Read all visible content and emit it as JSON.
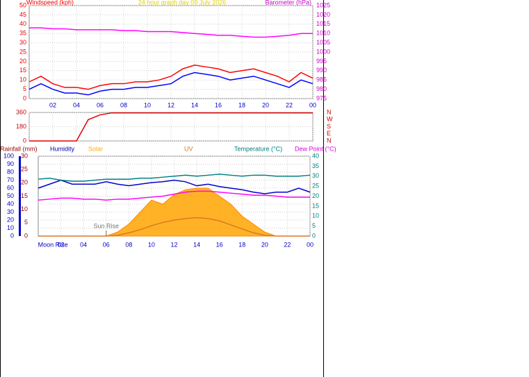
{
  "chart_data": [
    {
      "type": "line",
      "title": "24 hour graph day  09 July 2026",
      "ylabel": "Windspeed (kph)",
      "y2label": "Barometer (hPa)",
      "xlim": [
        0,
        24
      ],
      "x": [
        0,
        1,
        2,
        3,
        4,
        5,
        6,
        7,
        8,
        9,
        10,
        11,
        12,
        13,
        14,
        15,
        16,
        17,
        18,
        19,
        20,
        21,
        22,
        23,
        24
      ],
      "xticks": [
        {
          "value": 2,
          "label": "02"
        },
        {
          "value": 4,
          "label": "04"
        },
        {
          "value": 6,
          "label": "06"
        },
        {
          "value": 8,
          "label": "08"
        },
        10,
        12,
        14,
        16,
        18,
        20,
        22,
        {
          "value": 24,
          "label": "00"
        }
      ],
      "ylim": [
        0,
        50
      ],
      "yticks": [
        0,
        5,
        10,
        15,
        20,
        25,
        30,
        35,
        40,
        45,
        50
      ],
      "y2lim": [
        975,
        1025
      ],
      "y2ticks": [
        975,
        980,
        985,
        990,
        995,
        1000,
        1005,
        1010,
        1015,
        1020,
        1025
      ],
      "grid": true,
      "series": [
        {
          "color": "#ff0000",
          "values": [
            9,
            12,
            8,
            6,
            6,
            5,
            7,
            8,
            8,
            9,
            9,
            10,
            12,
            16,
            18,
            17,
            16,
            14,
            15,
            16,
            14,
            12,
            9,
            14,
            11
          ]
        },
        {
          "color": "#0000ff",
          "values": [
            5,
            8,
            5,
            3,
            3,
            2,
            4,
            5,
            5,
            6,
            6,
            7,
            8,
            12,
            14,
            13,
            12,
            10,
            11,
            12,
            10,
            8,
            6,
            10,
            8
          ]
        },
        {
          "color": "#ff00ff",
          "axis": "y2",
          "values": [
            1013,
            1013,
            1012.5,
            1012.5,
            1012,
            1012,
            1012,
            1012,
            1011.5,
            1011.5,
            1011,
            1011,
            1011,
            1010.5,
            1010,
            1009.5,
            1009,
            1009,
            1008.5,
            1008,
            1008,
            1008.5,
            1009,
            1010,
            1010
          ]
        }
      ]
    },
    {
      "type": "line",
      "xlim": [
        0,
        24
      ],
      "x": [
        0,
        1,
        2,
        3,
        4,
        5,
        6,
        7,
        8,
        9,
        10,
        11,
        12,
        13,
        14,
        15,
        16,
        17,
        18,
        19,
        20,
        21,
        22,
        23,
        24
      ],
      "ylim": [
        0,
        360
      ],
      "yticks": [
        0,
        180,
        360
      ],
      "y2lim": [
        0,
        360
      ],
      "y2ticks": [
        {
          "value": 360,
          "label": "N"
        },
        {
          "value": 270,
          "label": "W"
        },
        {
          "value": 180,
          "label": "S"
        },
        {
          "value": 90,
          "label": "E"
        },
        {
          "value": 0,
          "label": "N"
        }
      ],
      "grid": true,
      "series": [
        {
          "color": "#dd0000",
          "values": [
            0,
            0,
            0,
            0,
            0,
            270,
            330,
            355,
            355,
            355,
            355,
            355,
            355,
            355,
            355,
            355,
            355,
            355,
            355,
            355,
            355,
            355,
            355,
            355,
            355
          ]
        }
      ]
    },
    {
      "type": "line",
      "labels": [
        {
          "text": "Rainfall (mm)",
          "color": "#990000"
        },
        {
          "text": "Humidity",
          "color": "#0000aa"
        },
        {
          "text": "Solar",
          "color": "#ffaa00"
        },
        {
          "text": "UV",
          "color": "#dd7722"
        },
        {
          "text": "Temperature (°C)",
          "color": "#008080"
        },
        {
          "text": "Dew Point (°C)",
          "color": "#dd00dd"
        }
      ],
      "xlim": [
        0,
        24
      ],
      "x": [
        0,
        1,
        2,
        3,
        4,
        5,
        6,
        7,
        8,
        9,
        10,
        11,
        12,
        13,
        14,
        15,
        16,
        17,
        18,
        19,
        20,
        21,
        22,
        23,
        24
      ],
      "xticks": [
        {
          "value": 2,
          "label": "02"
        },
        {
          "value": 4,
          "label": "04"
        },
        {
          "value": 6,
          "label": "06"
        },
        {
          "value": 8,
          "label": "08"
        },
        10,
        12,
        14,
        16,
        18,
        20,
        22,
        {
          "value": 24,
          "label": "00"
        }
      ],
      "ylim": [
        0,
        100
      ],
      "yticks": [
        0,
        10,
        20,
        30,
        40,
        50,
        60,
        70,
        80,
        90,
        100
      ],
      "y3lim": [
        0,
        30
      ],
      "y3ticks": [
        0,
        5,
        10,
        15,
        20,
        25,
        30
      ],
      "y2lim": [
        0,
        40
      ],
      "y2ticks": [
        0,
        5,
        10,
        15,
        20,
        25,
        30,
        35,
        40
      ],
      "grid": true,
      "annotations": [
        {
          "text": "Moon Rise",
          "x": 1.3
        },
        {
          "text": "Sun Rise",
          "x": 6
        }
      ],
      "series": [
        {
          "color": "#ffa500",
          "fill": true,
          "values": [
            0,
            0,
            0,
            0,
            0,
            0,
            0,
            5,
            15,
            30,
            45,
            40,
            52,
            58,
            60,
            60,
            50,
            40,
            25,
            15,
            5,
            0,
            0,
            0,
            0
          ]
        },
        {
          "color": "#0000cc",
          "values": [
            60,
            65,
            70,
            65,
            65,
            65,
            68,
            65,
            63,
            65,
            67,
            68,
            70,
            68,
            63,
            65,
            62,
            60,
            58,
            55,
            53,
            55,
            55,
            60,
            55
          ]
        },
        {
          "color": "#dd7722",
          "values": [
            0,
            0,
            0,
            0,
            0,
            0,
            0,
            1,
            4,
            8,
            13,
            17,
            20,
            22,
            23,
            22,
            19,
            14,
            9,
            4,
            1,
            0,
            0,
            0,
            0
          ]
        },
        {
          "color": "#008080",
          "axis": "y2",
          "values": [
            28.5,
            29,
            28,
            27.5,
            27.5,
            28,
            28.5,
            28.5,
            28.5,
            29,
            29,
            29.5,
            30,
            30.5,
            30,
            30.5,
            31,
            30.5,
            30,
            30.5,
            30.5,
            30,
            30,
            30,
            30.5
          ]
        },
        {
          "color": "#ff00ff",
          "axis": "y2",
          "values": [
            18,
            18.5,
            19,
            19,
            18.5,
            18.5,
            18,
            18.5,
            18.5,
            19,
            19.5,
            20,
            21,
            22,
            22.5,
            22.5,
            22,
            21.5,
            21,
            20.5,
            20.5,
            20,
            19.5,
            19.5,
            19.5
          ]
        }
      ]
    }
  ]
}
